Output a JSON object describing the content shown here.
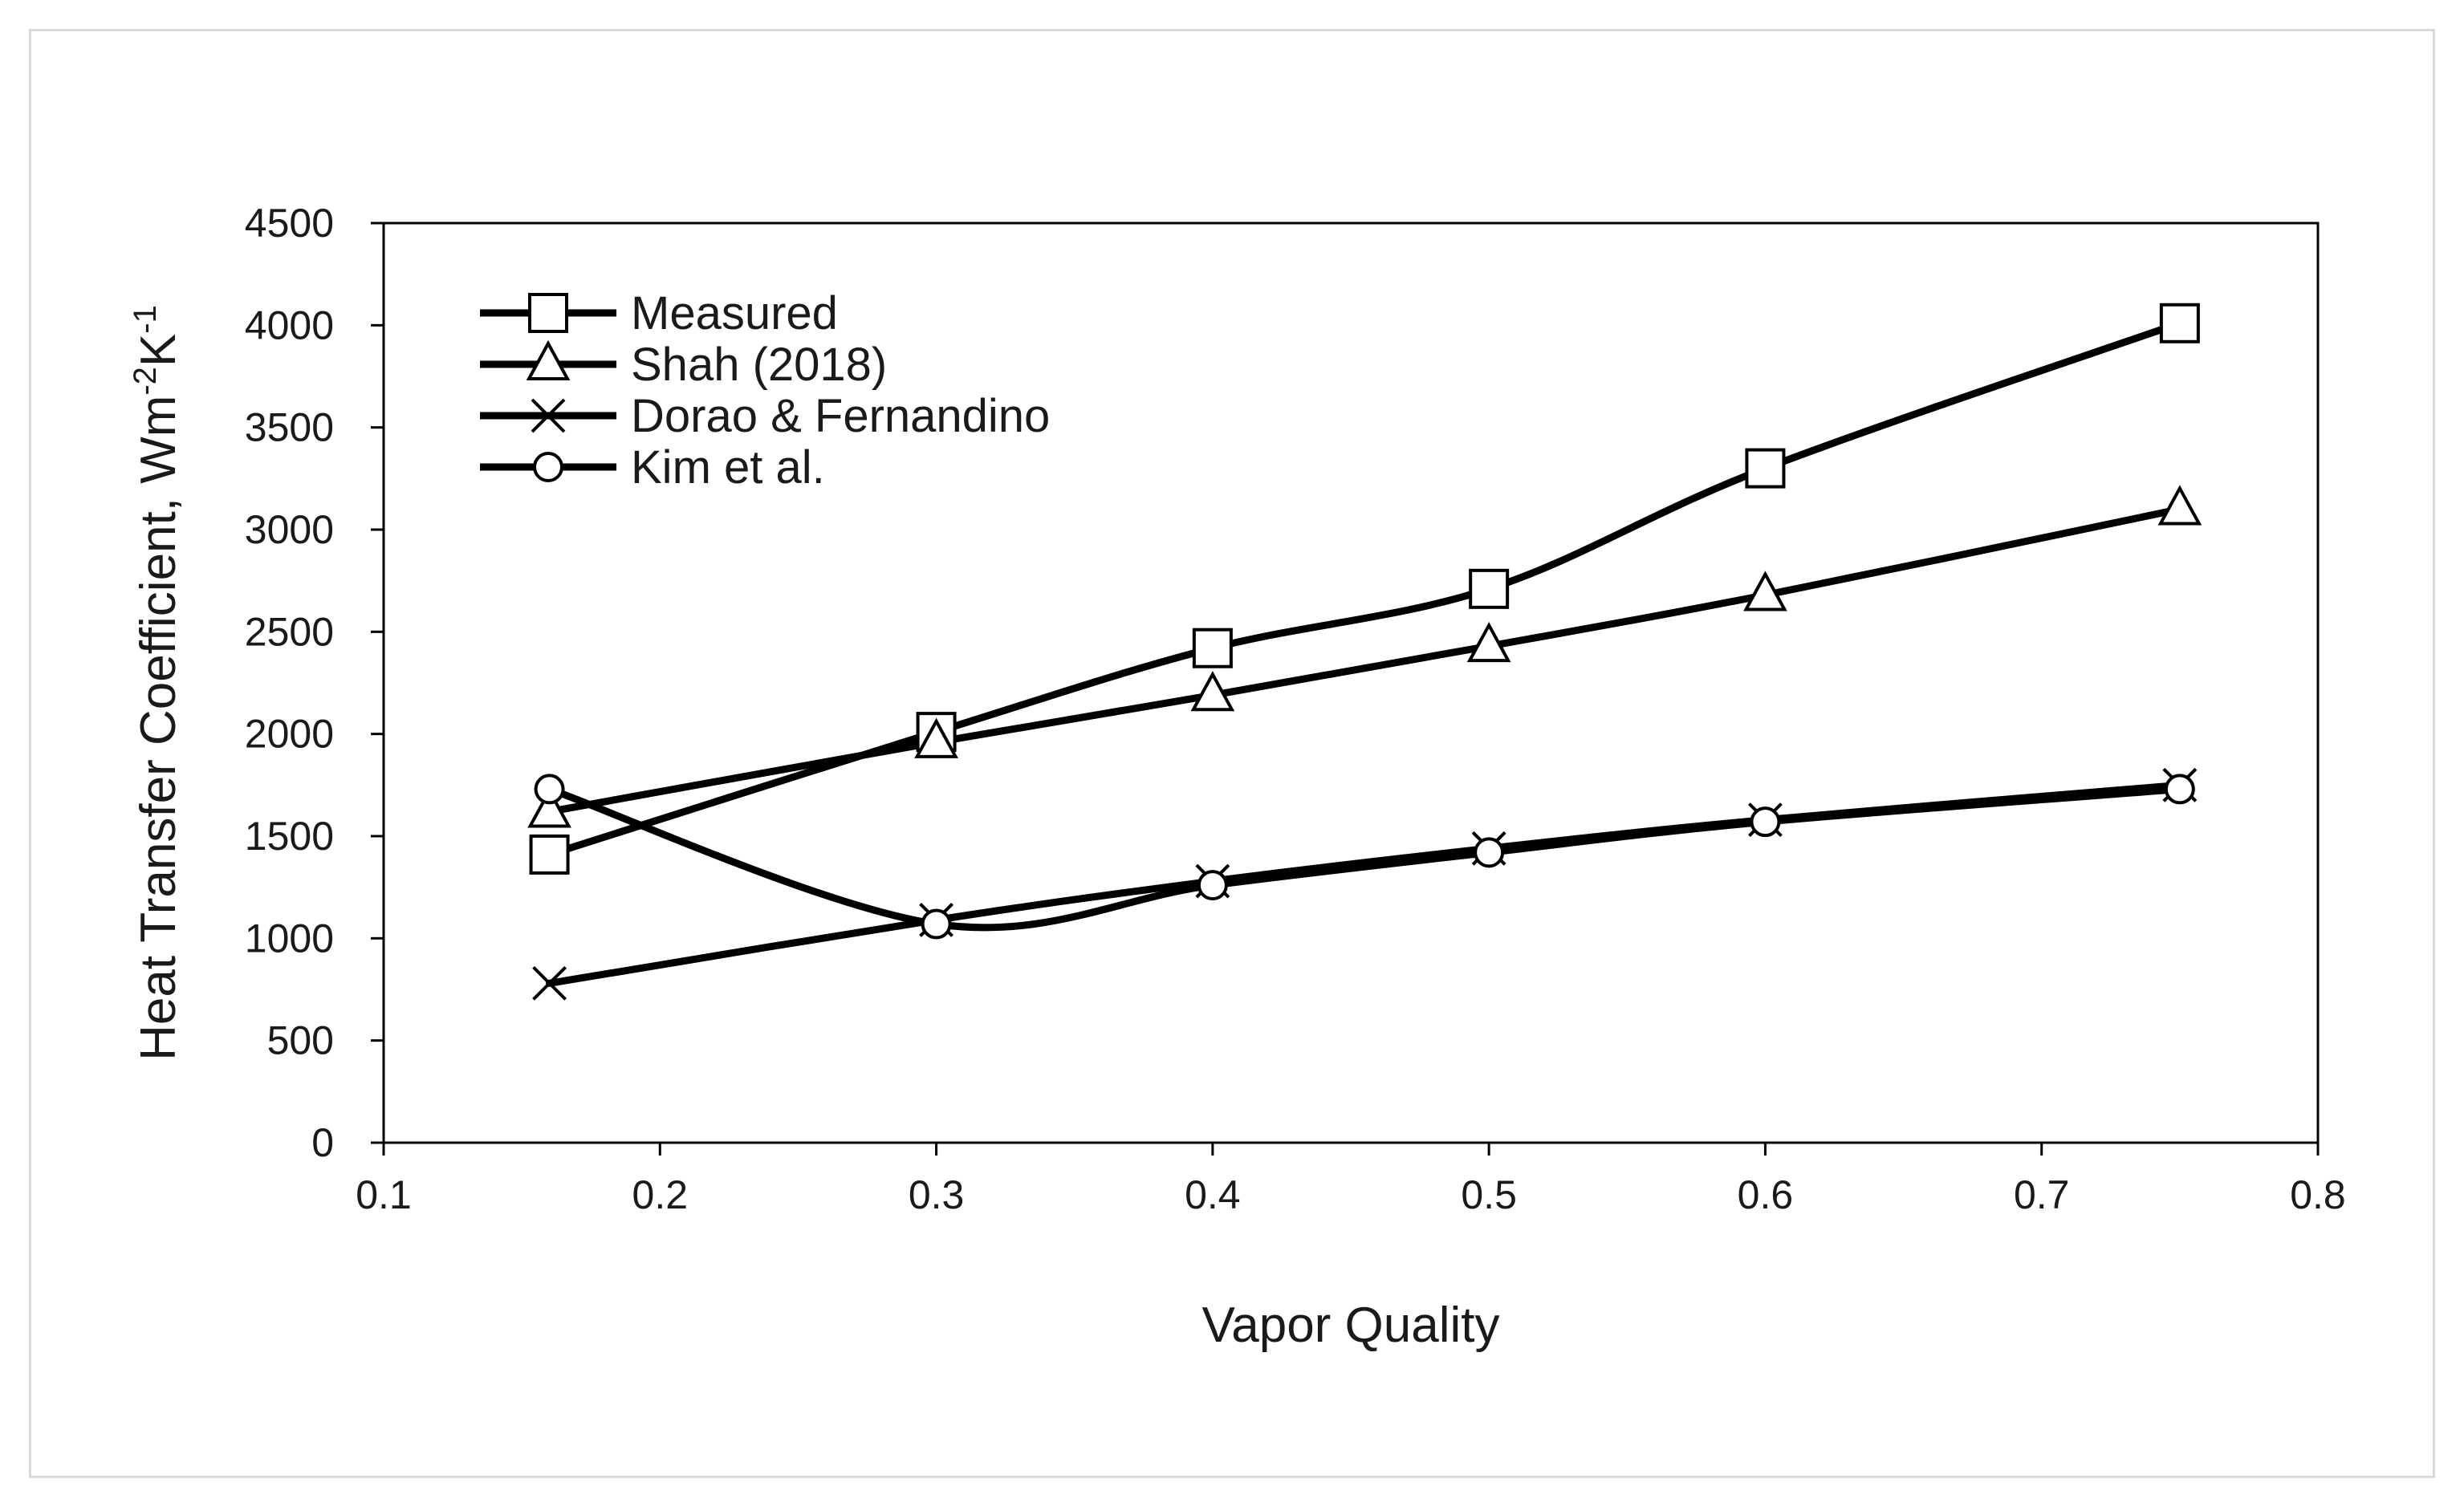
{
  "chart_data": {
    "type": "line",
    "title": "",
    "xlabel": "Vapor Quality",
    "ylabel": "Heat Transfer Coefficient, Wm",
    "ylabel_sup1": "-2",
    "ylabel_mid": "K",
    "ylabel_sup2": "-1",
    "xlim": [
      0.1,
      0.8
    ],
    "ylim": [
      0,
      4500
    ],
    "xticks": [
      0.1,
      0.2,
      0.3,
      0.4,
      0.5,
      0.6,
      0.7,
      0.8
    ],
    "xtick_labels": [
      "0.1",
      "0.2",
      "0.3",
      "0.4",
      "0.5",
      "0.6",
      "0.7",
      "0.8"
    ],
    "yticks": [
      0,
      500,
      1000,
      1500,
      2000,
      2500,
      3000,
      3500,
      4000,
      4500
    ],
    "ytick_labels": [
      "0",
      "500",
      "1000",
      "1500",
      "2000",
      "2500",
      "3000",
      "3500",
      "4000",
      "4500"
    ],
    "grid": false,
    "legend_position": "top-left",
    "line_color": "#000000",
    "series": [
      {
        "name": "Measured",
        "marker": "square",
        "x": [
          0.16,
          0.3,
          0.4,
          0.5,
          0.6,
          0.75
        ],
        "y": [
          1410,
          2010,
          2420,
          2710,
          3300,
          4010
        ]
      },
      {
        "name": "Shah (2018)",
        "marker": "triangle",
        "x": [
          0.16,
          0.3,
          0.4,
          0.5,
          0.6,
          0.75
        ],
        "y": [
          1620,
          1960,
          2190,
          2430,
          2680,
          3100
        ]
      },
      {
        "name": "Dorao & Fernandino",
        "marker": "x",
        "x": [
          0.16,
          0.3,
          0.4,
          0.5,
          0.6,
          0.75
        ],
        "y": [
          780,
          1090,
          1280,
          1440,
          1580,
          1750
        ]
      },
      {
        "name": "Kim et al.",
        "marker": "circle",
        "x": [
          0.16,
          0.3,
          0.4,
          0.5,
          0.6,
          0.75
        ],
        "y": [
          1730,
          1070,
          1260,
          1420,
          1570,
          1730
        ]
      }
    ]
  }
}
